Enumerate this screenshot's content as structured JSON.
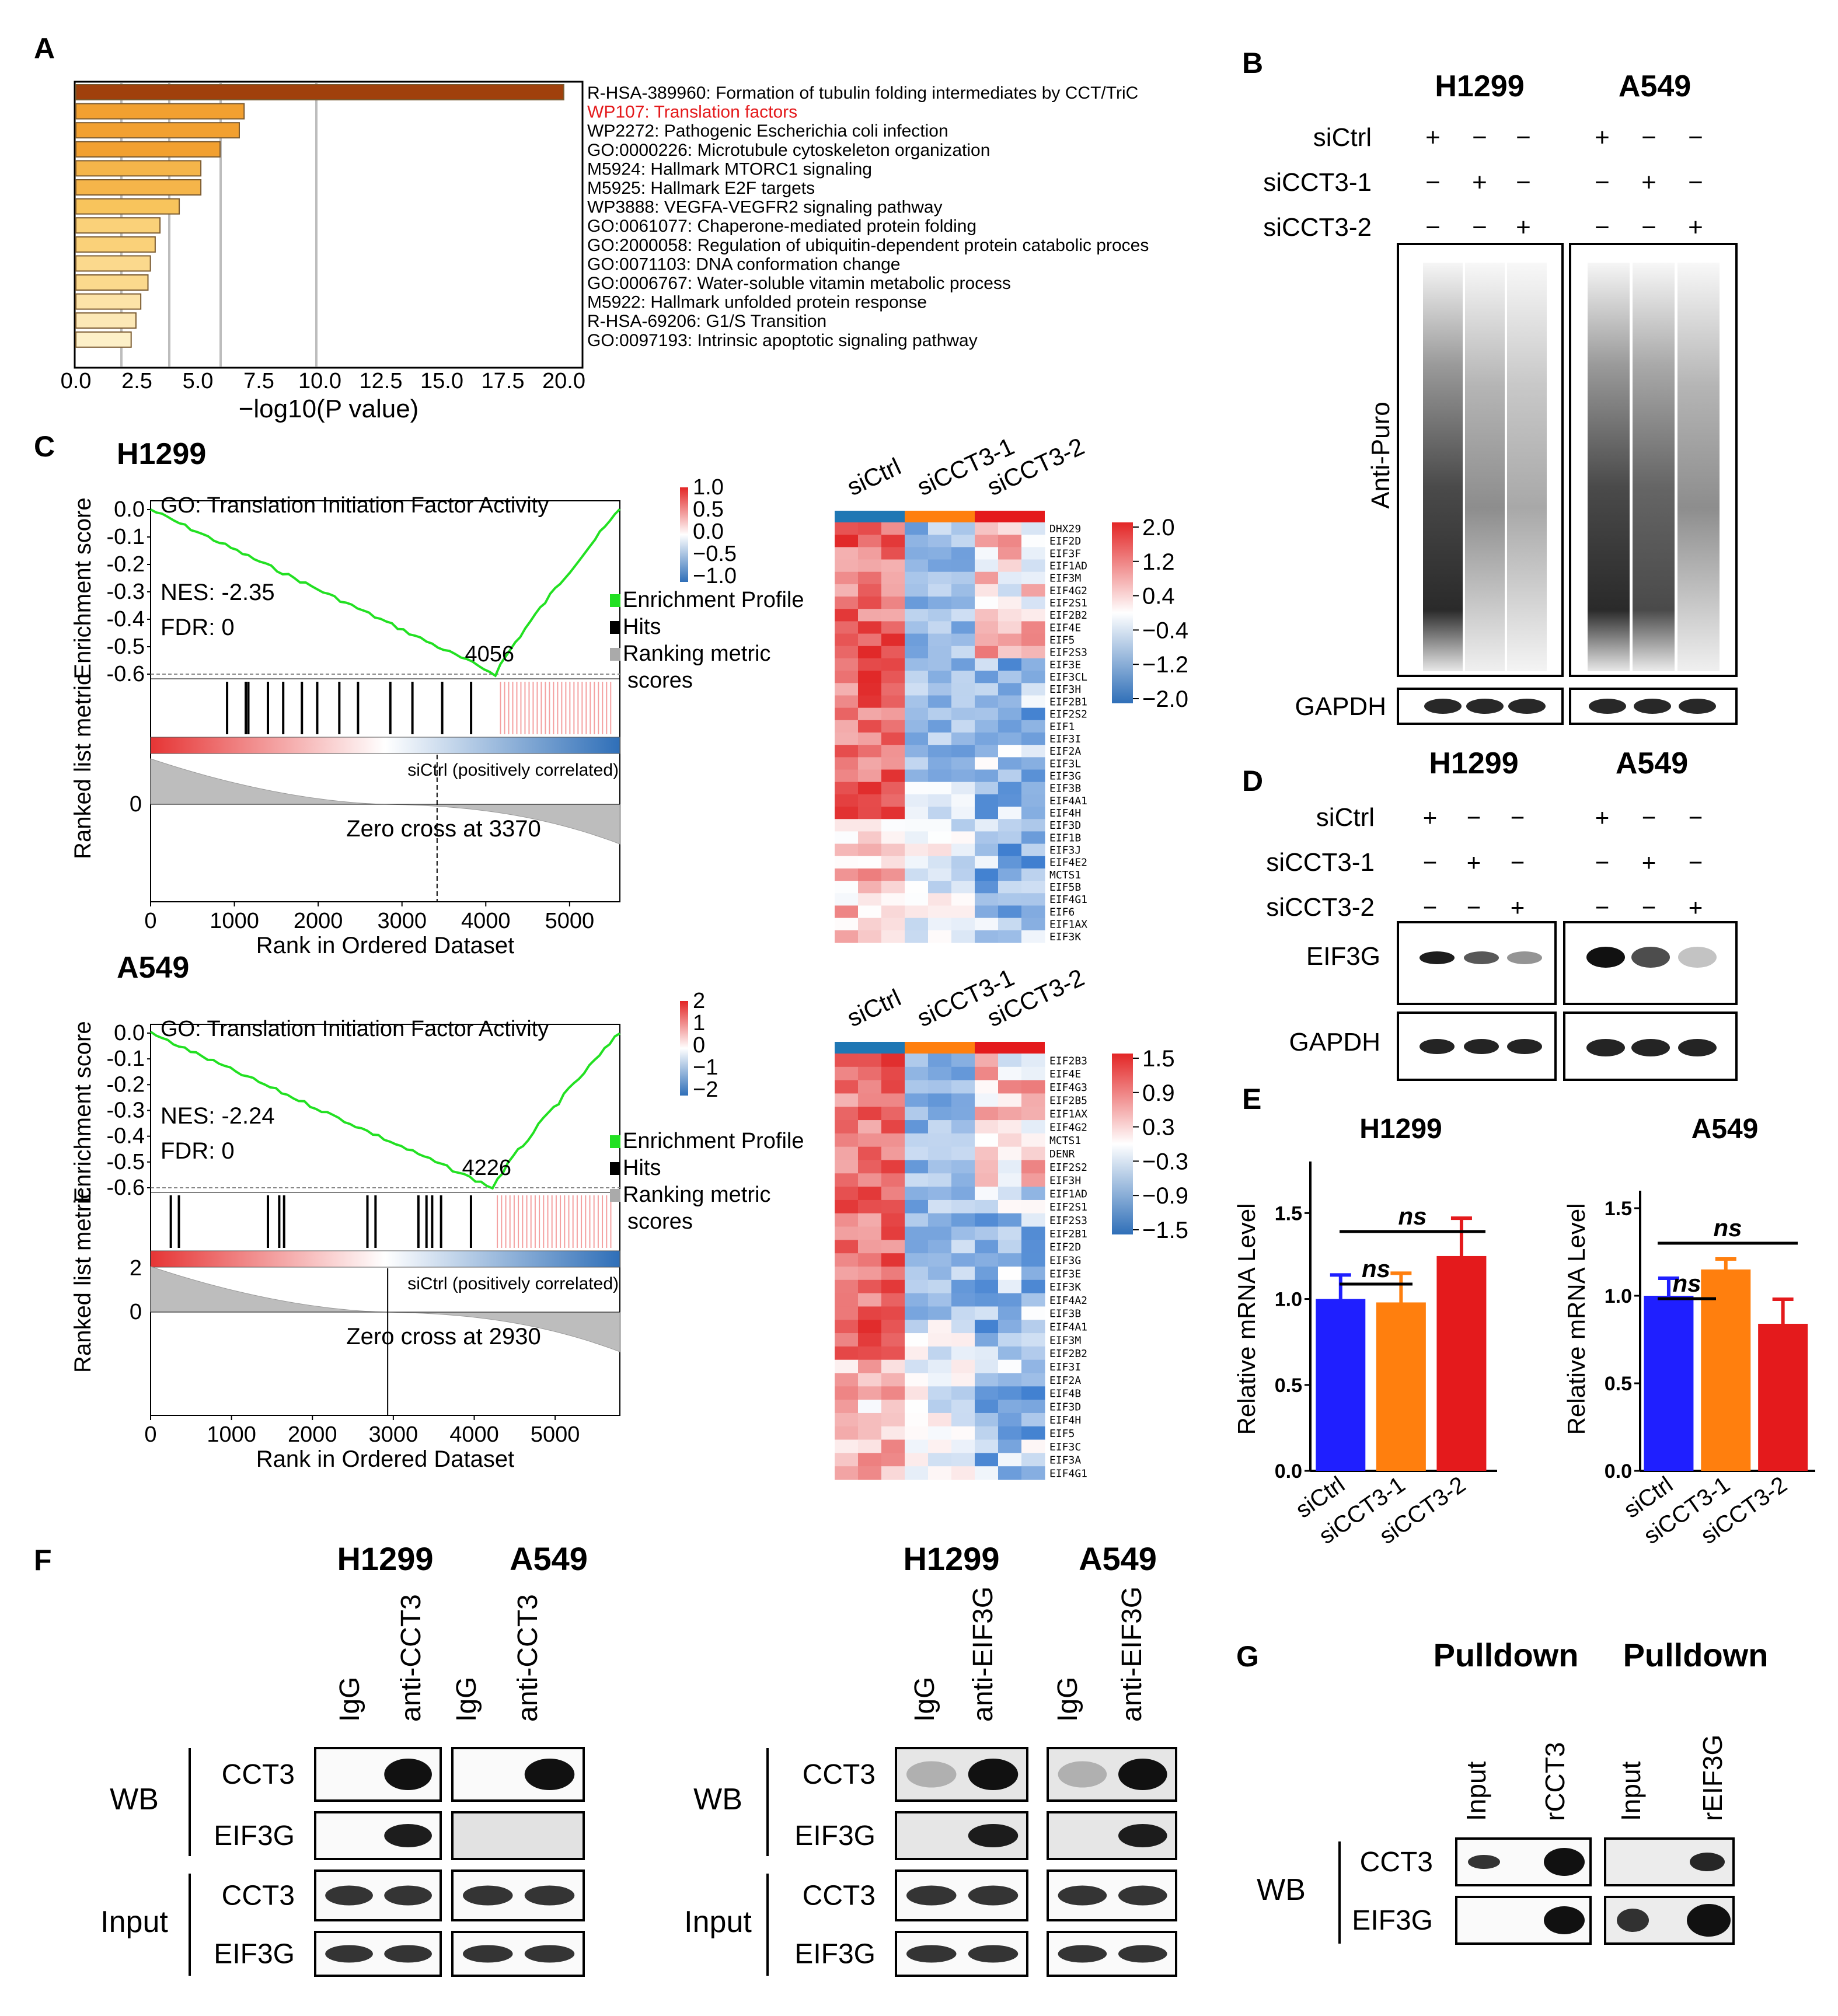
{
  "panel_labels": [
    "A",
    "B",
    "C",
    "D",
    "E",
    "F",
    "G"
  ],
  "colors": {
    "red": "#e41a1c",
    "orange": "#ff7f0e",
    "blue": "#1f1fff",
    "green": "#22e022",
    "bar_dark": "#a0400c",
    "heat_red": "#e32626",
    "heat_blue": "#2f6fb8"
  },
  "panel_a": {
    "xlabel": "−log10(P value)",
    "xticks": [
      "0.0",
      "2.5",
      "5.0",
      "7.5",
      "10.0",
      "12.5",
      "15.0",
      "17.5",
      "20.0"
    ],
    "terms": [
      "R-HSA-389960: Formation of tubulin folding intermediates by CCT/TriC",
      "WP107: Translation factors",
      "WP2272: Pathogenic Escherichia coli infection",
      "GO:0000226: Microtubule cytoskeleton organization",
      "M5924: Hallmark MTORC1 signaling",
      "M5925: Hallmark E2F targets",
      "WP3888: VEGFA-VEGFR2 signaling pathway",
      "GO:0061077: Chaperone-mediated protein folding",
      "GO:2000058: Regulation of ubiquitin-dependent protein catabolic proces",
      "GO:0071103: DNA conformation change",
      "GO:0006767: Water-soluble vitamin metabolic process",
      "M5922: Hallmark unfolded protein response",
      "R-HSA-69206: G1/S Transition",
      "GO:0097193: Intrinsic apoptotic signaling pathway"
    ]
  },
  "panel_b": {
    "cells": [
      "H1299",
      "A549"
    ],
    "rows": [
      "siCtrl",
      "siCCT3-1",
      "siCCT3-2"
    ],
    "signs": [
      [
        "+",
        "−",
        "−"
      ],
      [
        "−",
        "+",
        "−"
      ],
      [
        "−",
        "−",
        "+"
      ]
    ],
    "blot": "Anti-Puro",
    "loading": "GAPDH"
  },
  "panel_c": {
    "plots": [
      {
        "cell": "H1299",
        "title": "GO: Translation Initiation Factor Activity",
        "nes": "NES: -2.35",
        "fdr": "FDR: 0",
        "peak": "4056",
        "zero": "Zero cross at 3370",
        "corr": "siCtrl (positively correlated)",
        "xticks": [
          "0",
          "1000",
          "2000",
          "3000",
          "4000",
          "5000"
        ],
        "yticks": [
          "0.0",
          "-0.1",
          "-0.2",
          "-0.3",
          "-0.4",
          "-0.5",
          "-0.6"
        ],
        "metric_ticks": [
          "0"
        ]
      },
      {
        "cell": "A549",
        "title": "GO: Translation Initiation Factor Activity",
        "nes": "NES: -2.24",
        "fdr": "FDR: 0",
        "peak": "4226",
        "zero": "Zero cross at 2930",
        "corr": "siCtrl (positively correlated)",
        "xticks": [
          "0",
          "1000",
          "2000",
          "3000",
          "4000",
          "5000"
        ],
        "yticks": [
          "0.0",
          "-0.1",
          "-0.2",
          "-0.3",
          "-0.4",
          "-0.5",
          "-0.6"
        ],
        "metric_ticks": [
          "2",
          "0"
        ]
      }
    ],
    "ylabel_es": "Enrichment score",
    "ylabel_metric": "Ranked list metric",
    "xlabel": "Rank in Ordered Dataset",
    "legend": [
      "Enrichment Profile",
      "Hits",
      "Ranking metric",
      "scores"
    ],
    "cbar_small_1": [
      "1.0",
      "0.5",
      "0.0",
      "−0.5",
      "−1.0"
    ],
    "cbar_small_2": [
      "2",
      "1",
      "0",
      "−1",
      "−2"
    ],
    "cbar_big_1": [
      "2.0",
      "1.2",
      "0.4",
      "−0.4",
      "−1.2",
      "−2.0"
    ],
    "cbar_big_2": [
      "1.5",
      "0.9",
      "0.3",
      "−0.3",
      "−0.9",
      "−1.5"
    ],
    "heat_cols": [
      "siCtrl",
      "siCCT3-1",
      "siCCT3-2"
    ],
    "genes_1": [
      "DHX29",
      "EIF2D",
      "EIF3F",
      "EIF1AD",
      "EIF3M",
      "EIF4G2",
      "EIF2S1",
      "EIF2B2",
      "EIF4E",
      "EIF5",
      "EIF2S3",
      "EIF3E",
      "EIF3CL",
      "EIF3H",
      "EIF2B1",
      "EIF2S2",
      "EIF1",
      "EIF3I",
      "EIF2A",
      "EIF3L",
      "EIF3G",
      "EIF3B",
      "EIF4A1",
      "EIF4H",
      "EIF3D",
      "EIF1B",
      "EIF3J",
      "EIF4E2",
      "MCTS1",
      "EIF5B",
      "EIF4G1",
      "EIF6",
      "EIF1AX",
      "EIF3K"
    ],
    "genes_2": [
      "EIF2B3",
      "EIF4E",
      "EIF4G3",
      "EIF2B5",
      "EIF1AX",
      "EIF4G2",
      "MCTS1",
      "DENR",
      "EIF2S2",
      "EIF3H",
      "EIF1AD",
      "EIF2S1",
      "EIF2S3",
      "EIF2B1",
      "EIF2D",
      "EIF3G",
      "EIF3E",
      "EIF3K",
      "EIF4A2",
      "EIF3B",
      "EIF4A1",
      "EIF3M",
      "EIF2B2",
      "EIF3I",
      "EIF2A",
      "EIF4B",
      "EIF3D",
      "EIF4H",
      "EIF5",
      "EIF3C",
      "EIF3A",
      "EIF4G1"
    ]
  },
  "panel_d": {
    "cells": [
      "H1299",
      "A549"
    ],
    "rows": [
      "siCtrl",
      "siCCT3-1",
      "siCCT3-2"
    ],
    "signs": [
      [
        "+",
        "−",
        "−"
      ],
      [
        "−",
        "+",
        "−"
      ],
      [
        "−",
        "−",
        "+"
      ]
    ],
    "blots": [
      "EIF3G",
      "GAPDH"
    ]
  },
  "panel_e": {
    "ylabel": "Relative mRNA Level",
    "yticks": [
      "0.0",
      "0.5",
      "1.0",
      "1.5"
    ],
    "ns": "ns",
    "groups": [
      "siCtrl",
      "siCCT3-1",
      "siCCT3-2"
    ]
  },
  "panel_f": {
    "left": {
      "cells": [
        "H1299",
        "A549"
      ],
      "lanes": [
        "IgG",
        "anti-CCT3",
        "IgG",
        "anti-CCT3"
      ]
    },
    "right": {
      "cells": [
        "H1299",
        "A549"
      ],
      "lanes": [
        "IgG",
        "anti-EIF3G",
        "IgG",
        "anti-EIF3G"
      ]
    },
    "wb": "WB",
    "input": "Input",
    "proteins": [
      "CCT3",
      "EIF3G"
    ]
  },
  "panel_g": {
    "headers": [
      "Pulldown",
      "Pulldown"
    ],
    "lanes": [
      "Input",
      "rCCT3",
      "Input",
      "rEIF3G"
    ],
    "wb": "WB",
    "proteins": [
      "CCT3",
      "EIF3G"
    ]
  },
  "chart_data": [
    {
      "type": "bar",
      "orientation": "horizontal",
      "xlabel": "−log10(P value)",
      "xlim": [
        0,
        20.5
      ],
      "categories": [
        "R-HSA-389960",
        "WP107",
        "WP2272",
        "GO:0000226",
        "M5924",
        "M5925",
        "WP3888",
        "GO:0061077",
        "GO:2000058",
        "GO:0071103",
        "GO:0006767",
        "M5922",
        "R-HSA-69206",
        "GO:0097193"
      ],
      "values": [
        20.3,
        7.0,
        6.8,
        6.0,
        5.2,
        5.2,
        4.3,
        3.5,
        3.3,
        3.1,
        3.0,
        2.7,
        2.5,
        2.3
      ]
    },
    {
      "type": "bar",
      "title": "H1299",
      "ylabel": "Relative mRNA Level",
      "ylim": [
        0,
        1.8
      ],
      "categories": [
        "siCtrl",
        "siCCT3-1",
        "siCCT3-2"
      ],
      "values": [
        1.0,
        0.98,
        1.25
      ],
      "errors": [
        0.14,
        0.17,
        0.22
      ]
    },
    {
      "type": "bar",
      "title": "A549",
      "ylabel": "Relative mRNA Level",
      "ylim": [
        0,
        1.6
      ],
      "categories": [
        "siCtrl",
        "siCCT3-1",
        "siCCT3-2"
      ],
      "values": [
        1.0,
        1.15,
        0.84
      ],
      "errors": [
        0.1,
        0.06,
        0.14
      ]
    }
  ]
}
